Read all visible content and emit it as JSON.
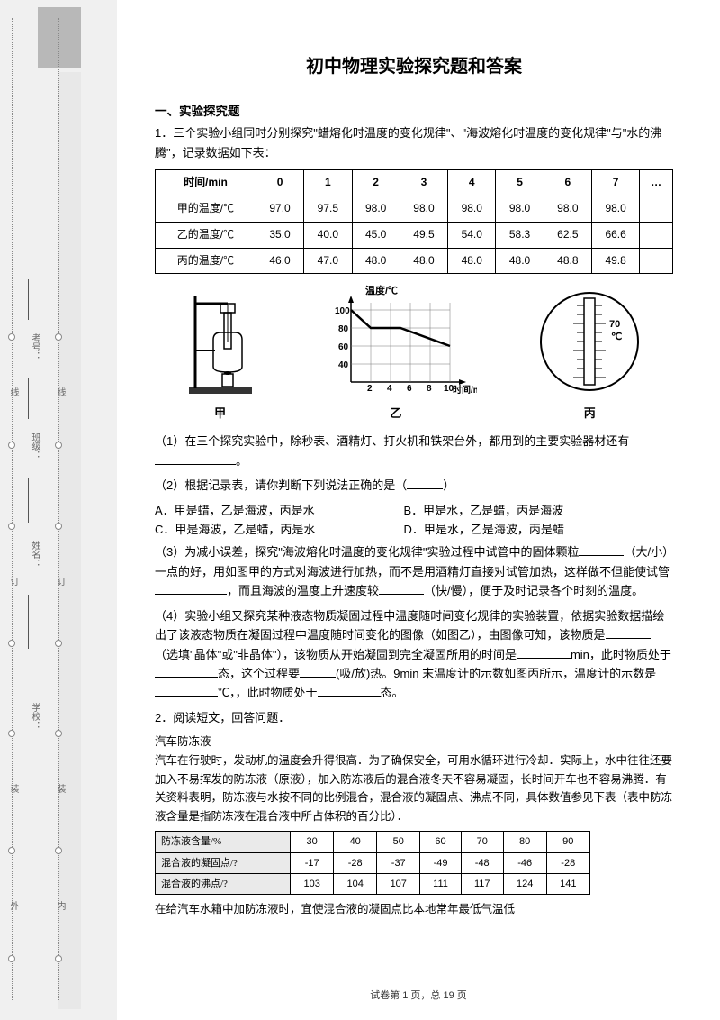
{
  "title": "初中物理实验探究题和答案",
  "section": "一、实验探究题",
  "q1": {
    "num": "1．",
    "intro": "三个实验小组同时分别探究\"蜡熔化时温度的变化规律\"、\"海波熔化时温度的变化规律\"与\"水的沸腾\"，记录数据如下表：",
    "table": {
      "headers": [
        "时间/min",
        "0",
        "1",
        "2",
        "3",
        "4",
        "5",
        "6",
        "7",
        "…"
      ],
      "rows": [
        [
          "甲的温度/℃",
          "97.0",
          "97.5",
          "98.0",
          "98.0",
          "98.0",
          "98.0",
          "98.0",
          "98.0",
          ""
        ],
        [
          "乙的温度/℃",
          "35.0",
          "40.0",
          "45.0",
          "49.5",
          "54.0",
          "58.3",
          "62.5",
          "66.6",
          ""
        ],
        [
          "丙的温度/℃",
          "46.0",
          "47.0",
          "48.0",
          "48.0",
          "48.0",
          "48.0",
          "48.8",
          "49.8",
          ""
        ]
      ]
    },
    "chart": {
      "ylabel": "温度/℃",
      "xlabel": "时间/min",
      "yticks": [
        40,
        60,
        80,
        100
      ],
      "xticks": [
        2,
        4,
        6,
        8,
        10
      ],
      "line_points": [
        [
          0,
          100
        ],
        [
          2,
          80
        ],
        [
          3,
          80
        ],
        [
          5,
          80
        ],
        [
          10,
          60
        ]
      ],
      "grid_color": "#555",
      "line_color": "#000",
      "line_width": 2
    },
    "fig_labels": {
      "a": "甲",
      "b": "乙",
      "c": "丙"
    },
    "thermometer": {
      "scale_label": "℃",
      "mark_70": "70"
    },
    "p1": "（1）在三个探究实验中，除秒表、酒精灯、打火机和铁架台外，都用到的主要实验器材还有",
    "p1_end": "。",
    "p2": "（2）根据记录表，请你判断下列说法正确的是（",
    "p2_end": "）",
    "opts": {
      "A": "A．甲是蜡，乙是海波，丙是水",
      "B": "B．甲是水，乙是蜡，丙是海波",
      "C": "C．甲是海波，乙是蜡，丙是水",
      "D": "D．甲是水，乙是海波，丙是蜡"
    },
    "p3a": "（3）为减小误差，探究\"海波熔化时温度的变化规律\"实验过程中试管中的固体颗粒",
    "p3b": "（大/小）一点的好，用如图甲的方式对海波进行加热，而不是用酒精灯直接对试管加热，这样做不但能使试管",
    "p3c": "，而且海波的温度上升速度较",
    "p3d": "（快/慢），便于及时记录各个时刻的温度。",
    "p4a": "（4）实验小组又探究某种液态物质凝固过程中温度随时间变化规律的实验装置，依据实验数据描绘出了该液态物质在凝固过程中温度随时间变化的图像（如图乙），由图像可知，该物质是",
    "p4b": "（选填\"晶体\"或\"非晶体\"），该物质从开始凝固到完全凝固所用的时间是",
    "p4c": "min，此时物质处于",
    "p4d": "态，这个过程要",
    "p4e": "(吸/放)热。9min 末温度计的示数如图丙所示，温度计的示数是",
    "p4f": "℃，，此时物质处于",
    "p4g": "态。"
  },
  "q2": {
    "num": "2．",
    "intro": "阅读短文，回答问题．",
    "subtitle": "汽车防冻液",
    "body": "汽车在行驶时，发动机的温度会升得很高．为了确保安全，可用水循环进行冷却．实际上，水中往往还要加入不易挥发的防冻液（原液），加入防冻液后的混合液冬天不容易凝固，长时间开车也不容易沸腾．有关资料表明，防冻液与水按不同的比例混合，混合液的凝固点、沸点不同，具体数值参见下表（表中防冻液含量是指防冻液在混合液中所占体积的百分比）．",
    "table": {
      "rows": [
        [
          "防冻液含量/%",
          "30",
          "40",
          "50",
          "60",
          "70",
          "80",
          "90"
        ],
        [
          "混合液的凝固点/?",
          "-17",
          "-28",
          "-37",
          "-49",
          "-48",
          "-46",
          "-28"
        ],
        [
          "混合液的沸点/?",
          "103",
          "104",
          "107",
          "111",
          "117",
          "124",
          "141"
        ]
      ]
    },
    "tail": "在给汽车水箱中加防冻液时，宜使混合液的凝固点比本地常年最低气温低"
  },
  "binding": {
    "outer": "外",
    "inner": "内",
    "zhuang": "装",
    "ding": "订",
    "xian": "线",
    "school": "学校：",
    "name": "姓名：",
    "class": "班级：",
    "id": "考号："
  },
  "footer": "试卷第 1 页，总 19 页",
  "colors": {
    "bg": "#f0f0f0",
    "page_bg": "#ffffff",
    "text": "#000000",
    "border": "#000000"
  }
}
